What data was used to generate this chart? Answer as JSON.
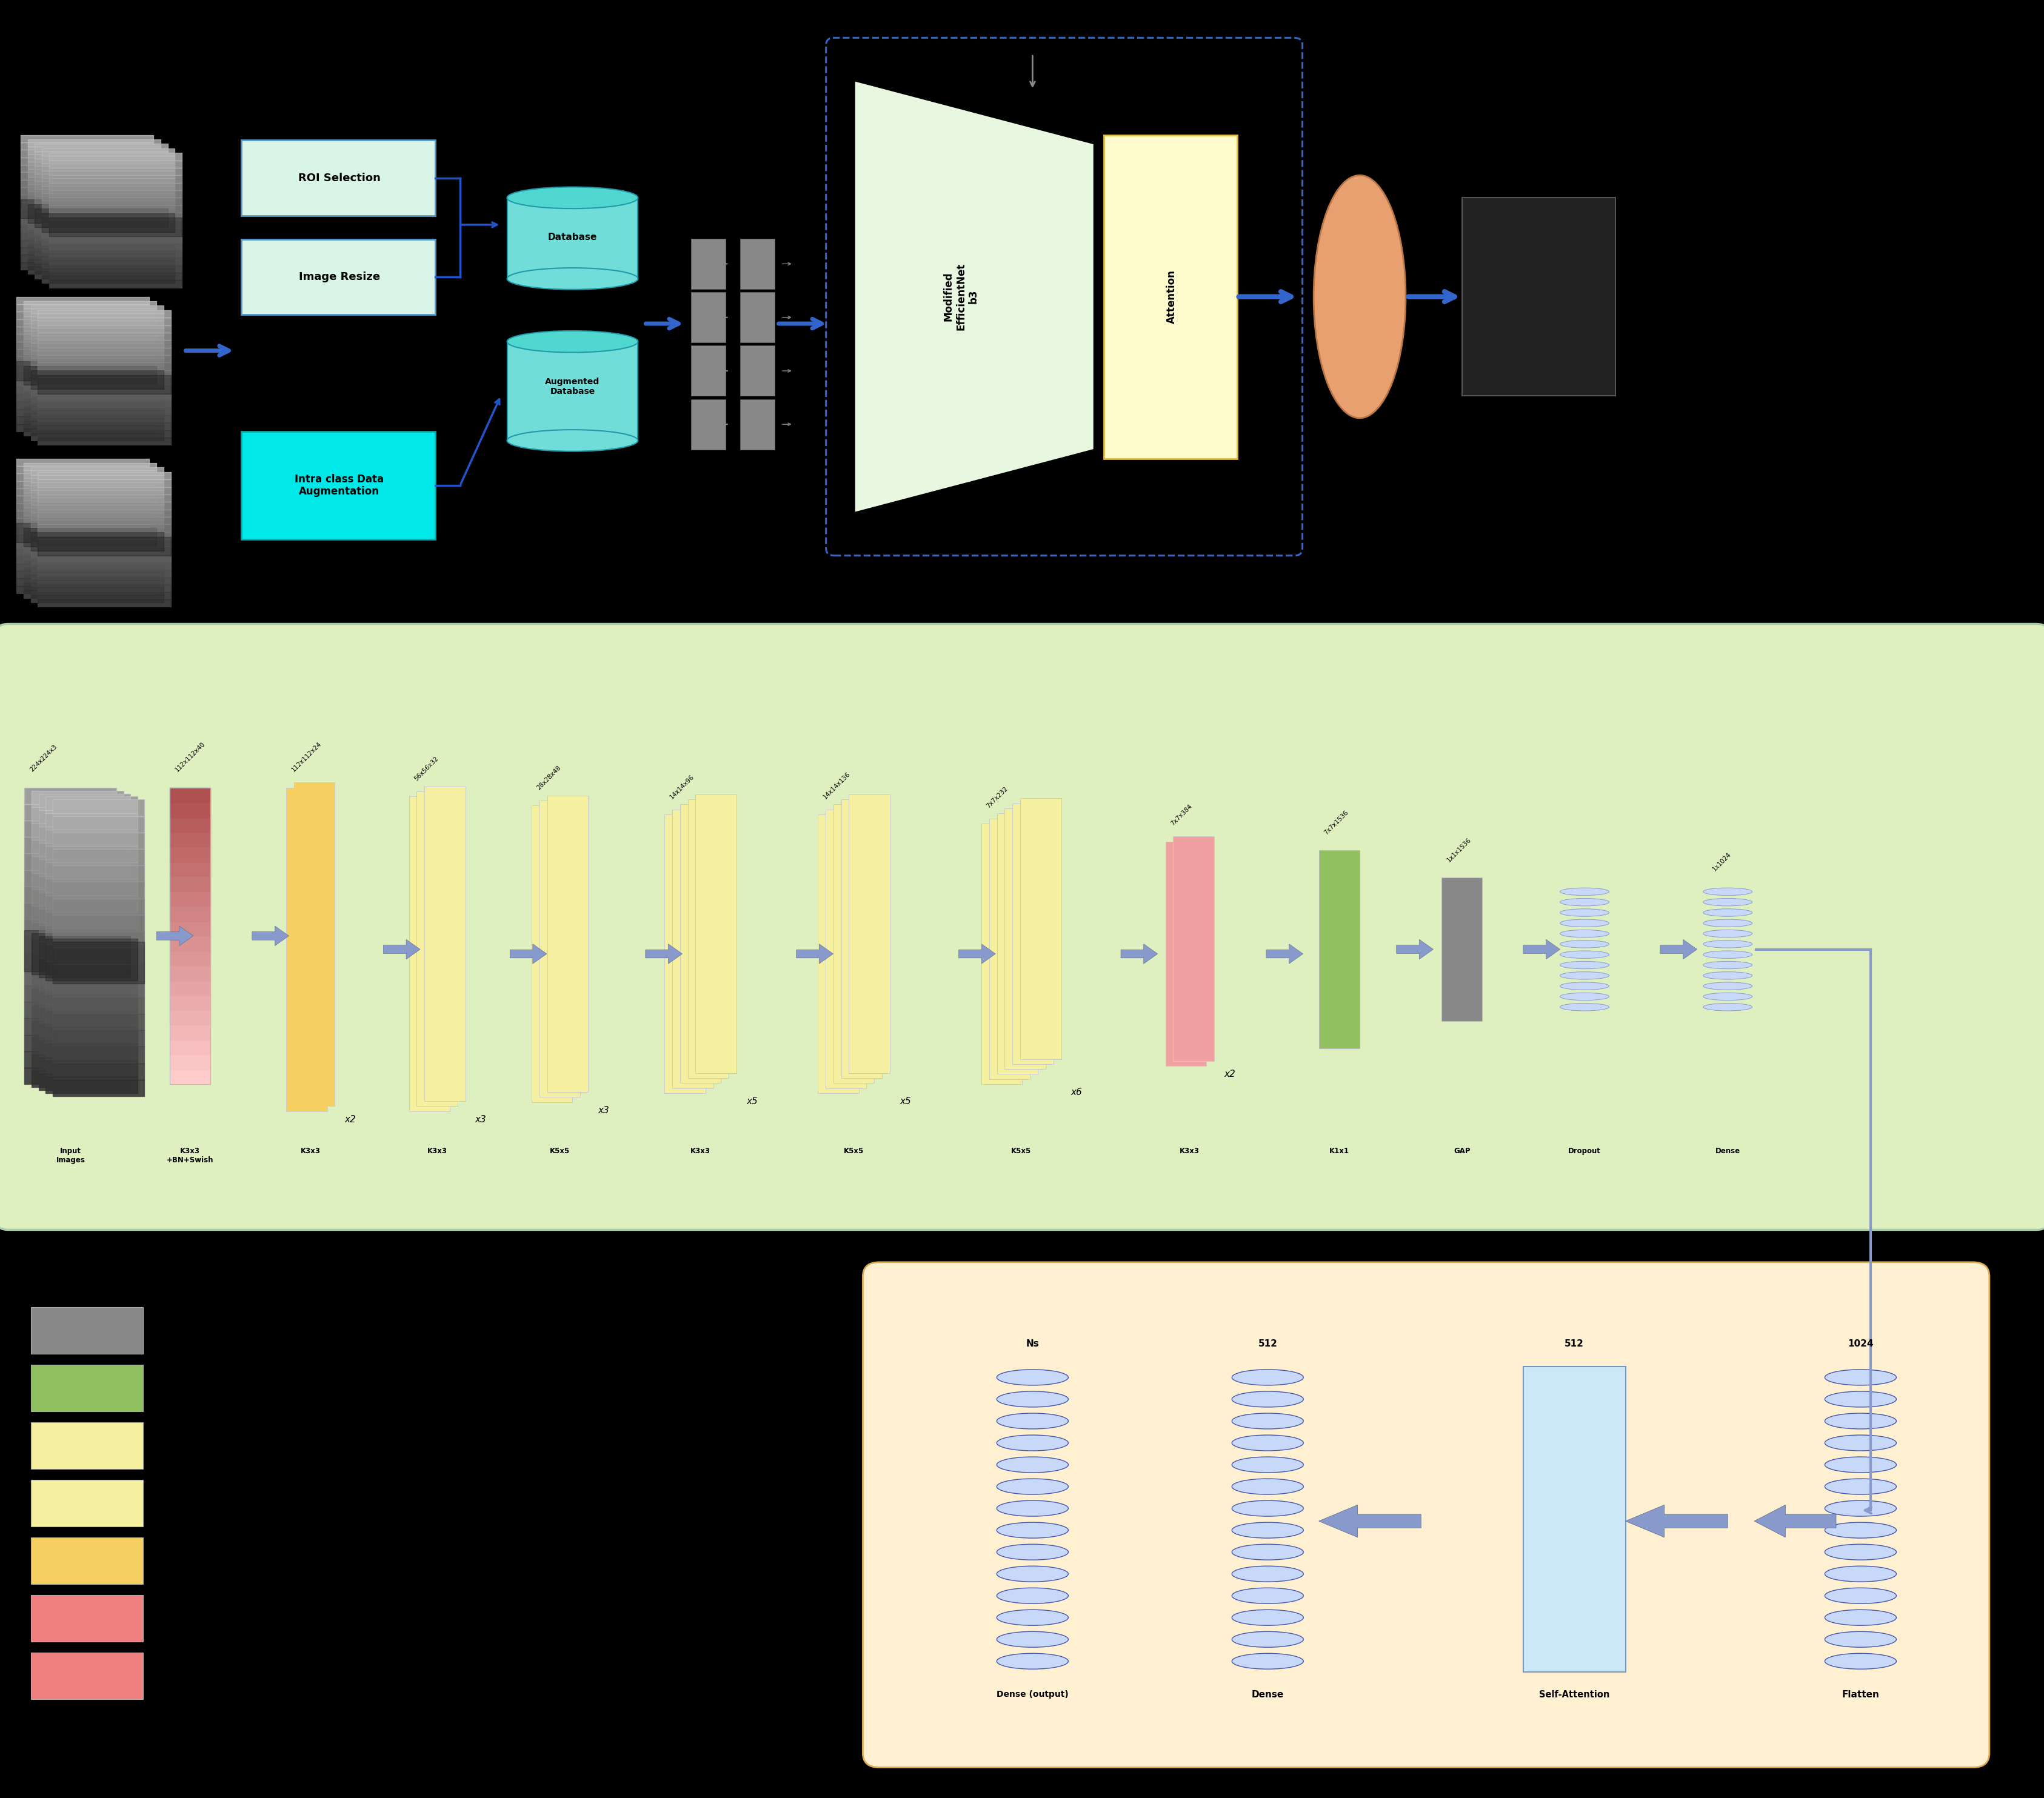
{
  "bg": "#000000",
  "fw": 33.73,
  "fh": 29.67,
  "arrow_blue": "#4466cc",
  "arrow_light": "#8899cc",
  "top": {
    "roi_fc": "#d8f5e8",
    "roi_ec": "#5599cc",
    "intra_fc": "#00e8e8",
    "intra_ec": "#00aaaa",
    "db_fc": "#70ddd8",
    "db_ec": "#2299aa",
    "eff_fc": "#e8f8e0",
    "att_fc": "#fffacc",
    "att_ec": "#ddbb44",
    "ellipse_fc": "#e8a070",
    "ellipse_ec": "#bb7744",
    "out_fc": "#222222",
    "dash_ec": "#3366cc",
    "grid_fc": "#888888"
  },
  "mid": {
    "bg": "#dff0c0",
    "ec": "#aaccaa",
    "layer_colors": [
      "#f08080",
      "#f5d060",
      "#f5f0a0",
      "#f5f0a0",
      "#f5f0a0",
      "#f5f0a0",
      "#f5f0a0",
      "#f0a0a0",
      "#90c060",
      "#888888",
      "#c8d8f8"
    ],
    "labels": [
      "K3x3\n+BN+Swish",
      "K3x3",
      "K3x3",
      "K5x5",
      "K3x3",
      "K5x5",
      "K5x5",
      "K3x3",
      "K1x1",
      "GAP",
      "Dropout",
      "Dense"
    ],
    "dims": [
      "224x224x3",
      "112x112x40",
      "112x112x24",
      "56x56x32",
      "28x28x48",
      "14x14x96",
      "14x14x136",
      "7x7x232",
      "7x7x384",
      "7x7x1536",
      "1x1x1536",
      "1x1024"
    ],
    "reps": [
      "",
      "x2",
      "x3",
      "x3",
      "x5",
      "x5",
      "x6",
      "x2",
      "",
      "",
      "",
      ""
    ]
  },
  "bot": {
    "bg": "#fef0d0",
    "ec": "#ddaa55",
    "labels": [
      "Dense (output)",
      "Dense",
      "Self-Attention",
      "Flatten"
    ],
    "dims": [
      "Ns",
      "512",
      "512",
      "1024"
    ]
  }
}
